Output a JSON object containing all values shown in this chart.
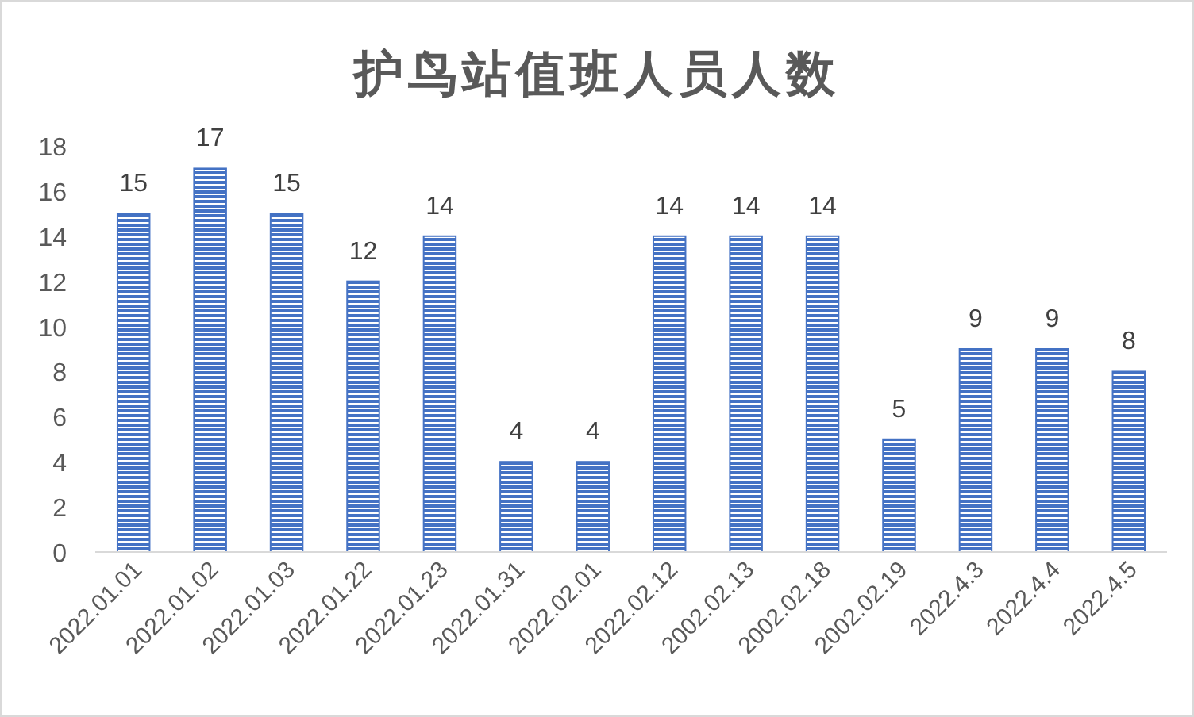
{
  "chart_data": {
    "type": "bar",
    "title": "护鸟站值班人员人数",
    "categories": [
      "2022.01.01",
      "2022.01.02",
      "2022.01.03",
      "2022.01.22",
      "2022.01.23",
      "2022.01.31",
      "2022.02.01",
      "2022.02.12",
      "2002.02.13",
      "2002.02.18",
      "2002.02.19",
      "2022.4.3",
      "2022.4.4",
      "2022.4.5"
    ],
    "values": [
      15,
      17,
      15,
      12,
      14,
      4,
      4,
      14,
      14,
      14,
      5,
      9,
      9,
      8
    ],
    "color": "#4472c4",
    "ylim": [
      0,
      18
    ],
    "yticks": [
      0,
      2,
      4,
      6,
      8,
      10,
      12,
      14,
      16,
      18
    ],
    "data_labels": true
  }
}
